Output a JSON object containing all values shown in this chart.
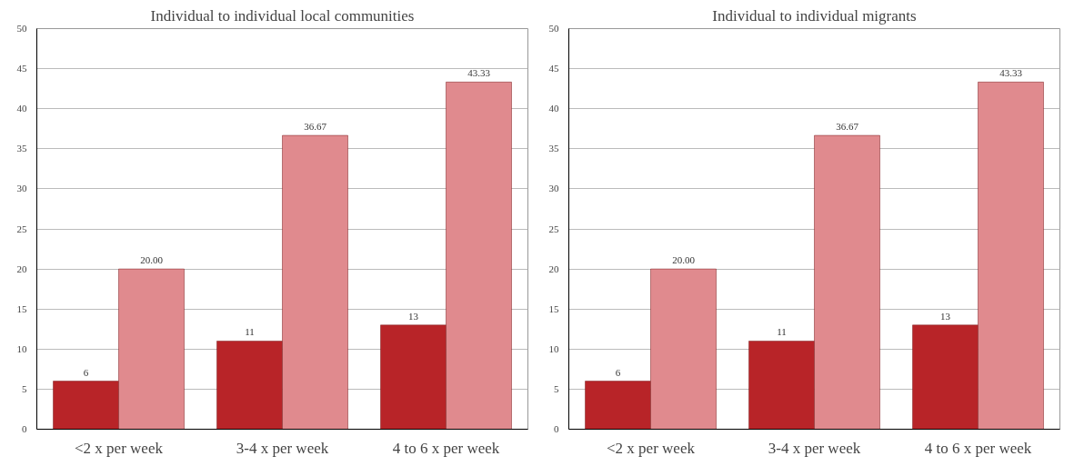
{
  "chart_data": [
    {
      "type": "bar",
      "title": "Individual to individual local communities",
      "categories": [
        "<2 x per week",
        "3-4 x per week",
        "4 to 6 x per week"
      ],
      "series": [
        {
          "color": "#b82428",
          "values": [
            6,
            11,
            13
          ],
          "value_labels": [
            "6",
            "11",
            "13"
          ]
        },
        {
          "color": "#e08a8e",
          "values": [
            20.0,
            36.67,
            43.33
          ],
          "value_labels": [
            "20.00",
            "36.67",
            "43.33"
          ]
        }
      ],
      "ylim": [
        0,
        50
      ],
      "yticks": [
        0,
        5,
        10,
        15,
        20,
        25,
        30,
        35,
        40,
        45,
        50
      ],
      "grid": "y"
    },
    {
      "type": "bar",
      "title": "Individual to individual migrants",
      "categories": [
        "<2 x per week",
        "3-4 x per week",
        "4 to 6 x per week"
      ],
      "series": [
        {
          "color": "#b82428",
          "values": [
            6,
            11,
            13
          ],
          "value_labels": [
            "6",
            "11",
            "13"
          ]
        },
        {
          "color": "#e08a8e",
          "values": [
            20.0,
            36.67,
            43.33
          ],
          "value_labels": [
            "20.00",
            "36.67",
            "43.33"
          ]
        }
      ],
      "ylim": [
        0,
        50
      ],
      "yticks": [
        0,
        5,
        10,
        15,
        20,
        25,
        30,
        35,
        40,
        45,
        50
      ],
      "grid": "y"
    }
  ]
}
